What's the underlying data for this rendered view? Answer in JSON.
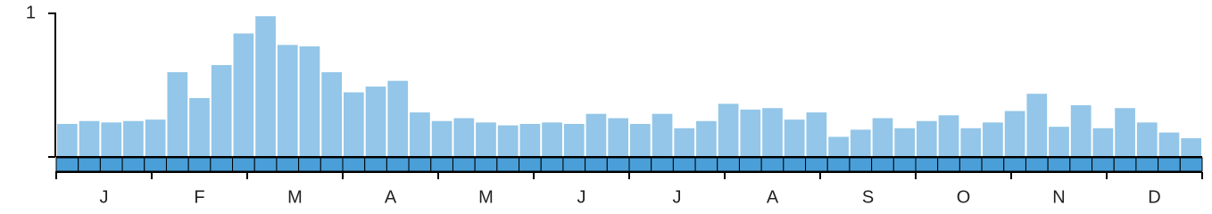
{
  "chart_data": {
    "type": "bar",
    "categories": [
      null,
      null,
      null,
      null,
      null,
      null,
      null,
      null,
      null,
      null,
      null,
      null,
      null,
      null,
      null,
      null,
      null,
      null,
      null,
      null,
      null,
      null,
      null,
      null,
      null,
      null,
      null,
      null,
      null,
      null,
      null,
      null,
      null,
      null,
      null,
      null,
      null,
      null,
      null,
      null,
      null,
      null,
      null,
      null,
      null,
      null,
      null,
      null,
      null,
      null,
      null,
      null
    ],
    "values": [
      0.23,
      0.25,
      0.24,
      0.25,
      0.26,
      0.59,
      0.41,
      0.64,
      0.86,
      0.98,
      0.78,
      0.77,
      0.59,
      0.45,
      0.49,
      0.53,
      0.31,
      0.25,
      0.27,
      0.24,
      0.22,
      0.23,
      0.24,
      0.23,
      0.3,
      0.27,
      0.23,
      0.3,
      0.2,
      0.25,
      0.37,
      0.33,
      0.34,
      0.26,
      0.31,
      0.14,
      0.19,
      0.27,
      0.2,
      0.25,
      0.29,
      0.2,
      0.24,
      0.32,
      0.44,
      0.21,
      0.36,
      0.2,
      0.34,
      0.24,
      0.17,
      0.13
    ],
    "color": "#93c6e8",
    "months": [
      "J",
      "F",
      "M",
      "A",
      "M",
      "J",
      "J",
      "A",
      "S",
      "O",
      "N",
      "D"
    ],
    "ylim": [
      0,
      1
    ],
    "yticks": [
      1
    ]
  }
}
